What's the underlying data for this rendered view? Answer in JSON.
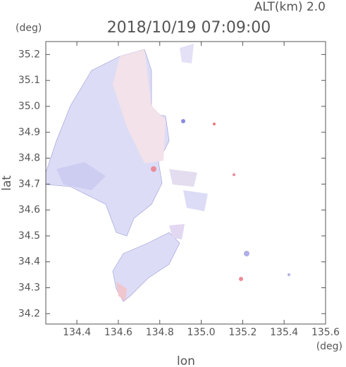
{
  "chart_data": {
    "type": "map",
    "title": "2018/10/19 07:09:00",
    "subtitle": "ALT(km) 2.0",
    "y_unit": "(deg)",
    "x_unit": "(deg)",
    "xlabel": "lon",
    "ylabel": "lat",
    "xlim": [
      134.25,
      135.6
    ],
    "ylim": [
      34.16,
      35.25
    ],
    "xticks": [
      134.4,
      134.6,
      134.8,
      {
        "value": 135.0,
        "label": "135.0"
      },
      135.2,
      135.4,
      135.6
    ],
    "yticks": [
      34.2,
      34.3,
      34.4,
      34.5,
      34.6,
      34.7,
      34.8,
      34.9,
      {
        "value": 35.0,
        "label": "35.0"
      },
      35.1,
      35.2
    ]
  }
}
